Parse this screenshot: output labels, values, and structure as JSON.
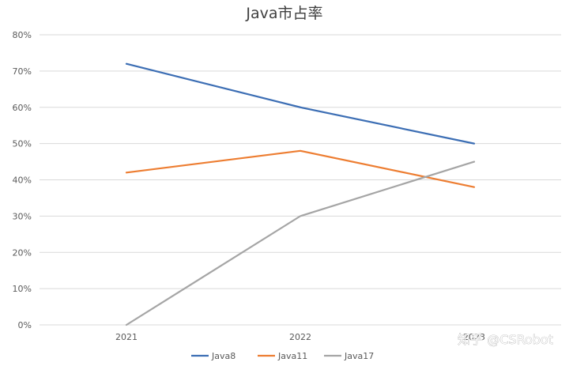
{
  "chart_data": {
    "type": "line",
    "title": "Java市占率",
    "xlabel": "",
    "ylabel": "",
    "categories": [
      "2021",
      "2022",
      "2023"
    ],
    "y_tick_labels": [
      "0%",
      "10%",
      "20%",
      "30%",
      "40%",
      "50%",
      "60%",
      "70%",
      "80%"
    ],
    "ylim": [
      0,
      80
    ],
    "y_unit": "%",
    "grid": true,
    "legend_position": "bottom",
    "series": [
      {
        "name": "Java8",
        "values": [
          72,
          60,
          50
        ],
        "color": "#3c6eb4"
      },
      {
        "name": "Java11",
        "values": [
          42,
          48,
          38
        ],
        "color": "#ed7d31"
      },
      {
        "name": "Java17",
        "values": [
          0,
          30,
          45
        ],
        "color": "#a5a5a5"
      }
    ]
  },
  "watermark": {
    "text": "知乎 @CSRobot"
  }
}
